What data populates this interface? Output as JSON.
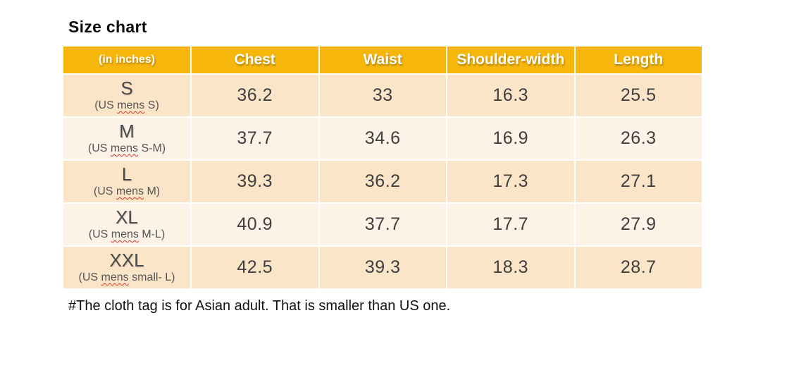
{
  "page": {
    "title": "Size chart",
    "footnote": "#The cloth tag is for Asian adult. That is smaller than US one."
  },
  "table": {
    "unit_label": "(in inches)",
    "headers": [
      "Chest",
      "Waist",
      "Shoulder-width",
      "Length"
    ],
    "rows": [
      {
        "size": "S",
        "us_pre": "(US ",
        "us_wavy": "mens",
        "us_suf": " S)",
        "values": [
          "36.2",
          "33",
          "16.3",
          "25.5"
        ]
      },
      {
        "size": "M",
        "us_pre": "(US ",
        "us_wavy": "mens",
        "us_suf": " S-M)",
        "values": [
          "37.7",
          "34.6",
          "16.9",
          "26.3"
        ]
      },
      {
        "size": "L",
        "us_pre": "(US ",
        "us_wavy": "mens",
        "us_suf": " M)",
        "values": [
          "39.3",
          "36.2",
          "17.3",
          "27.1"
        ]
      },
      {
        "size": "XL",
        "us_pre": "(US ",
        "us_wavy": "mens",
        "us_suf": " M-L)",
        "values": [
          "40.9",
          "37.7",
          "17.7",
          "27.9"
        ]
      },
      {
        "size": "XXL",
        "us_pre": "(US ",
        "us_wavy": "mens",
        "us_suf": " small- L)",
        "values": [
          "42.5",
          "39.3",
          "18.3",
          "28.7"
        ]
      }
    ]
  },
  "colors": {
    "header_bg": "#F7B60C",
    "row_odd_bg": "#FBE5C9",
    "row_even_bg": "#FCF2E6",
    "header_text": "#FFFFFF",
    "value_text": "#3F3F3F",
    "spellcheck_wavy": "#D0342C",
    "page_bg": "#FFFFFF"
  },
  "chart_data": {
    "type": "table",
    "title": "Size chart",
    "unit": "inches",
    "columns": [
      "(in inches)",
      "Chest",
      "Waist",
      "Shoulder-width",
      "Length"
    ],
    "rows": [
      [
        "S (US mens S)",
        36.2,
        33,
        16.3,
        25.5
      ],
      [
        "M (US mens S-M)",
        37.7,
        34.6,
        16.9,
        26.3
      ],
      [
        "L (US mens M)",
        39.3,
        36.2,
        17.3,
        27.1
      ],
      [
        "XL (US mens M-L)",
        40.9,
        37.7,
        17.7,
        27.9
      ],
      [
        "XXL (US mens small- L)",
        42.5,
        39.3,
        18.3,
        28.7
      ]
    ],
    "footnote": "#The cloth tag is for Asian adult. That is smaller than US one."
  }
}
